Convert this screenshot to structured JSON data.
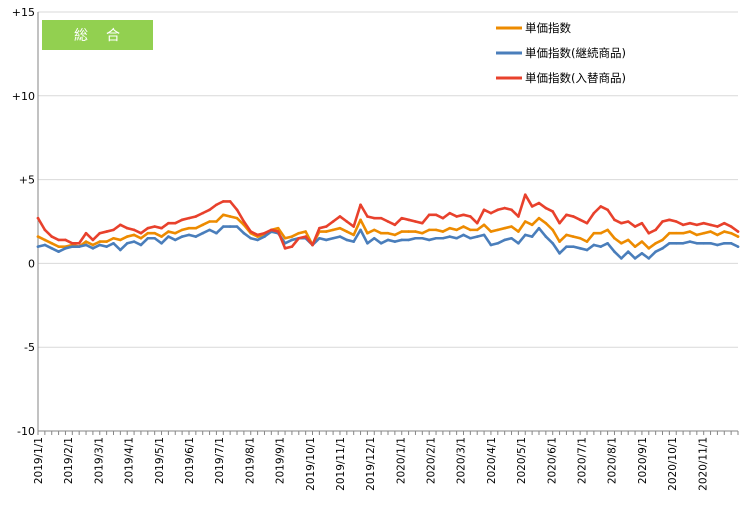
{
  "badge": {
    "label": "総合",
    "color": "#92d050"
  },
  "chart_data": {
    "type": "line",
    "title": "",
    "xlabel": "",
    "ylabel": "",
    "ylim": [
      -10,
      15
    ],
    "y_ticks": [
      "+15",
      "+10",
      "+5",
      "0",
      "-5",
      "-10"
    ],
    "y_tick_values": [
      15,
      10,
      5,
      0,
      -5,
      -10
    ],
    "grid": "horizontal",
    "legend_position": "top-right",
    "x_labels": [
      "2019/1/1",
      "2019/2/1",
      "2019/3/1",
      "2019/4/1",
      "2019/5/1",
      "2019/6/1",
      "2019/7/1",
      "2019/8/1",
      "2019/9/1",
      "2019/10/1",
      "2019/11/1",
      "2019/12/1",
      "2020/1/1",
      "2020/2/1",
      "2020/3/1",
      "2020/4/1",
      "2020/5/1",
      "2020/6/1",
      "2020/7/1",
      "2020/8/1",
      "2020/9/1",
      "2020/10/1",
      "2020/11/1"
    ],
    "weeks_per_label": 4.4,
    "series": [
      {
        "name": "単価指数",
        "color": "#ed8b00",
        "values": [
          1.6,
          1.4,
          1.2,
          1.0,
          1.0,
          1.1,
          1.0,
          1.3,
          1.1,
          1.3,
          1.3,
          1.5,
          1.4,
          1.6,
          1.7,
          1.5,
          1.8,
          1.8,
          1.6,
          1.9,
          1.8,
          2.0,
          2.1,
          2.1,
          2.3,
          2.5,
          2.5,
          2.9,
          2.8,
          2.7,
          2.3,
          1.8,
          1.6,
          1.7,
          2.0,
          2.1,
          1.5,
          1.6,
          1.8,
          1.9,
          1.1,
          1.9,
          1.9,
          2.0,
          2.1,
          1.9,
          1.7,
          2.6,
          1.8,
          2.0,
          1.8,
          1.8,
          1.7,
          1.9,
          1.9,
          1.9,
          1.8,
          2.0,
          2.0,
          1.9,
          2.1,
          2.0,
          2.2,
          2.0,
          2.0,
          2.3,
          1.9,
          2.0,
          2.1,
          2.2,
          1.9,
          2.5,
          2.3,
          2.7,
          2.4,
          2.0,
          1.3,
          1.7,
          1.6,
          1.5,
          1.3,
          1.8,
          1.8,
          2.0,
          1.5,
          1.2,
          1.4,
          1.0,
          1.3,
          0.9,
          1.2,
          1.4,
          1.8,
          1.8,
          1.8,
          1.9,
          1.7,
          1.8,
          1.9,
          1.7,
          1.9,
          1.8,
          1.6
        ]
      },
      {
        "name": "単価指数(継続商品)",
        "color": "#4a7ebb",
        "values": [
          1.0,
          1.1,
          0.9,
          0.7,
          0.9,
          1.0,
          1.0,
          1.1,
          0.9,
          1.1,
          1.0,
          1.2,
          0.8,
          1.2,
          1.3,
          1.1,
          1.5,
          1.5,
          1.2,
          1.6,
          1.4,
          1.6,
          1.7,
          1.6,
          1.8,
          2.0,
          1.8,
          2.2,
          2.2,
          2.2,
          1.8,
          1.5,
          1.4,
          1.6,
          1.9,
          1.8,
          1.2,
          1.4,
          1.5,
          1.5,
          1.1,
          1.5,
          1.4,
          1.5,
          1.6,
          1.4,
          1.3,
          2.0,
          1.2,
          1.5,
          1.2,
          1.4,
          1.3,
          1.4,
          1.4,
          1.5,
          1.5,
          1.4,
          1.5,
          1.5,
          1.6,
          1.5,
          1.7,
          1.5,
          1.6,
          1.7,
          1.1,
          1.2,
          1.4,
          1.5,
          1.2,
          1.7,
          1.6,
          2.1,
          1.6,
          1.2,
          0.6,
          1.0,
          1.0,
          0.9,
          0.8,
          1.1,
          1.0,
          1.2,
          0.7,
          0.3,
          0.7,
          0.3,
          0.6,
          0.3,
          0.7,
          0.9,
          1.2,
          1.2,
          1.2,
          1.3,
          1.2,
          1.2,
          1.2,
          1.1,
          1.2,
          1.2,
          1.0
        ]
      },
      {
        "name": "単価指数(入替商品)",
        "color": "#e8412c",
        "values": [
          2.7,
          2.0,
          1.6,
          1.4,
          1.4,
          1.2,
          1.2,
          1.8,
          1.4,
          1.8,
          1.9,
          2.0,
          2.3,
          2.1,
          2.0,
          1.8,
          2.1,
          2.2,
          2.1,
          2.4,
          2.4,
          2.6,
          2.7,
          2.8,
          3.0,
          3.2,
          3.5,
          3.7,
          3.7,
          3.2,
          2.5,
          1.9,
          1.7,
          1.8,
          2.0,
          1.9,
          0.9,
          1.0,
          1.5,
          1.6,
          1.1,
          2.1,
          2.2,
          2.5,
          2.8,
          2.5,
          2.2,
          3.5,
          2.8,
          2.7,
          2.7,
          2.5,
          2.3,
          2.7,
          2.6,
          2.5,
          2.4,
          2.9,
          2.9,
          2.7,
          3.0,
          2.8,
          2.9,
          2.8,
          2.4,
          3.2,
          3.0,
          3.2,
          3.3,
          3.2,
          2.8,
          4.1,
          3.4,
          3.6,
          3.3,
          3.1,
          2.4,
          2.9,
          2.8,
          2.6,
          2.4,
          3.0,
          3.4,
          3.2,
          2.6,
          2.4,
          2.5,
          2.2,
          2.4,
          1.8,
          2.0,
          2.5,
          2.6,
          2.5,
          2.3,
          2.4,
          2.3,
          2.4,
          2.3,
          2.2,
          2.4,
          2.2,
          1.9
        ]
      }
    ]
  }
}
